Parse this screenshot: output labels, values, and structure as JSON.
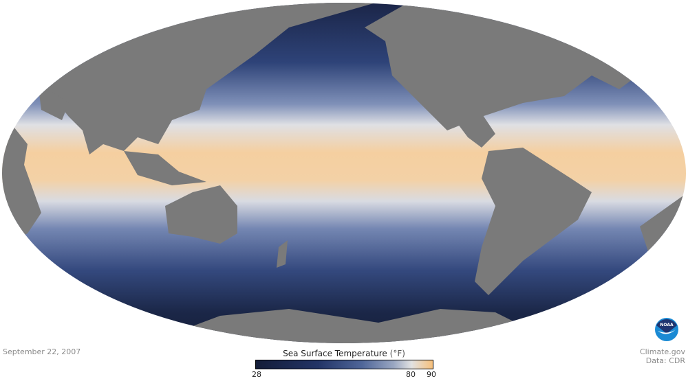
{
  "map": {
    "projection": "mollweide",
    "variable": "sea surface temperature",
    "land_color": "#7a7a7a",
    "ocean_colors": {
      "cold": "#141d38",
      "mid": "#4f6699",
      "neutral": "#e2e2e2",
      "warm": "#f6c07c"
    }
  },
  "date": "September 22, 2007",
  "legend": {
    "title": "Sea Surface Temperature",
    "unit": "(°F)",
    "min": 28,
    "max": 90,
    "ticks": [
      "28",
      "80",
      "90"
    ]
  },
  "credits": {
    "logo_text": "NOAA",
    "source": "Climate.gov",
    "data": "Data: CDR"
  }
}
